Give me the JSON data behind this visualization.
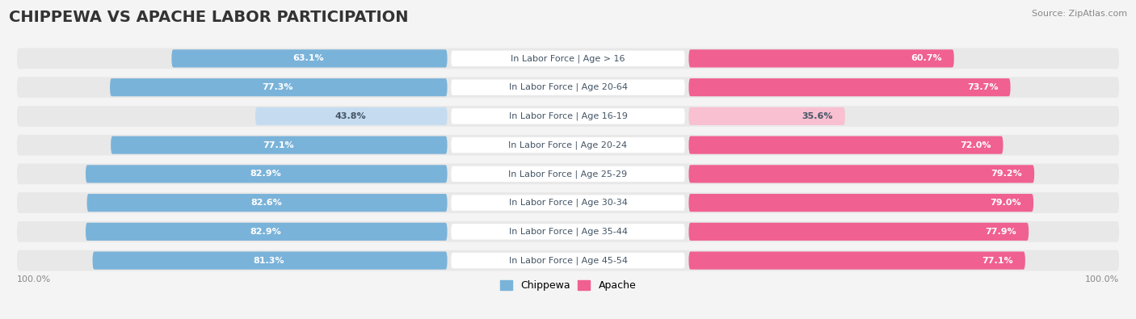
{
  "title": "CHIPPEWA VS APACHE LABOR PARTICIPATION",
  "source": "Source: ZipAtlas.com",
  "categories": [
    "In Labor Force | Age > 16",
    "In Labor Force | Age 20-64",
    "In Labor Force | Age 16-19",
    "In Labor Force | Age 20-24",
    "In Labor Force | Age 25-29",
    "In Labor Force | Age 30-34",
    "In Labor Force | Age 35-44",
    "In Labor Force | Age 45-54"
  ],
  "chippewa_values": [
    63.1,
    77.3,
    43.8,
    77.1,
    82.9,
    82.6,
    82.9,
    81.3
  ],
  "apache_values": [
    60.7,
    73.7,
    35.6,
    72.0,
    79.2,
    79.0,
    77.9,
    77.1
  ],
  "chippewa_color": "#7ab3d9",
  "chippewa_color_light": "#c5dcf0",
  "apache_color": "#f06090",
  "apache_color_light": "#f8c0d0",
  "background_color": "#f4f4f4",
  "row_bg_color": "#e8e8e8",
  "max_value": 100.0,
  "legend_chippewa": "Chippewa",
  "legend_apache": "Apache",
  "title_fontsize": 14,
  "label_fontsize": 8,
  "value_fontsize": 8,
  "source_fontsize": 8
}
